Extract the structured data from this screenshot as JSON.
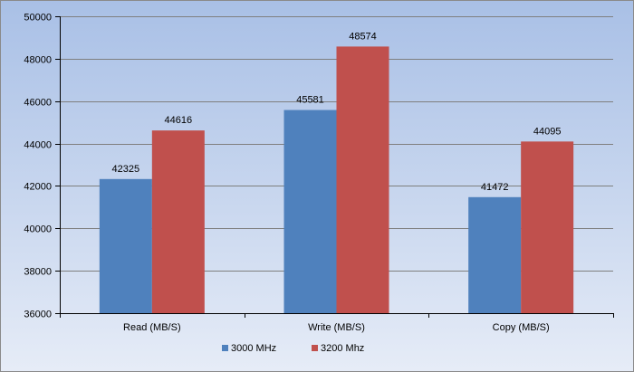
{
  "chart_data": {
    "type": "bar",
    "categories": [
      "Read (MB/S)",
      "Write (MB/S)",
      "Copy (MB/S)"
    ],
    "series": [
      {
        "name": "3000 MHz",
        "values": [
          42325,
          45581,
          41472
        ],
        "color": "#4f81bd"
      },
      {
        "name": "3200 Mhz",
        "values": [
          44616,
          48574,
          44095
        ],
        "color": "#c0504d"
      }
    ],
    "ylim": [
      36000,
      50000
    ],
    "yticks": [
      36000,
      38000,
      40000,
      42000,
      44000,
      46000,
      48000,
      50000
    ],
    "grid": true,
    "legend_position": "bottom",
    "data_labels": true
  }
}
